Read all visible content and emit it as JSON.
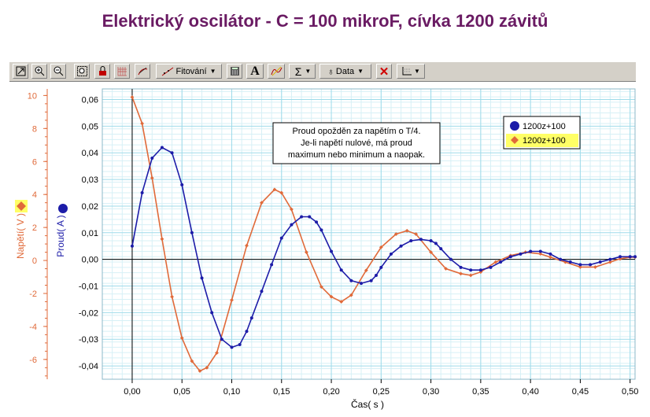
{
  "title": "Elektrický oscilátor - C = 100 mikroF, cívka 1200 závitů",
  "toolbar": {
    "icons": [
      "autoscale-icon",
      "zoom-in-icon",
      "zoom-out-icon",
      "zoom-box-icon",
      "lock-icon",
      "grid-icon",
      "slope-icon"
    ],
    "fit_label": "Fitování",
    "calc_icon": "calculator-icon",
    "text_icon": "A",
    "sigma_label": "Σ",
    "data_label": "Data",
    "delete_icon": "delete-icon",
    "axes_icon": "axes-options-icon"
  },
  "colors": {
    "current": "#1c1ca8",
    "voltage": "#e06a3a",
    "grid": "#9fdbea",
    "gridMinor": "#d7f0f6"
  },
  "chart_data": {
    "type": "line",
    "xlabel": "Čas( s )",
    "ylabel_left": "Proud( A )",
    "ylabel_right": "Napětí( V )",
    "xlim": [
      -0.03,
      0.505
    ],
    "ylim_current": [
      -0.045,
      0.064
    ],
    "ylim_voltage": [
      -7.2,
      10.4
    ],
    "x_ticks": [
      "0,00",
      "0,05",
      "0,10",
      "0,15",
      "0,20",
      "0,25",
      "0,30",
      "0,35",
      "0,40",
      "0,45",
      "0,50"
    ],
    "current_ticks": [
      "0,06",
      "0,05",
      "0,04",
      "0,03",
      "0,02",
      "0,01",
      "0,00",
      "-0,01",
      "-0,02",
      "-0,03",
      "-0,04"
    ],
    "voltage_ticks": [
      "10",
      "8",
      "6",
      "4",
      "2",
      "0",
      "-2",
      "-4",
      "-6"
    ],
    "annotation": [
      "Proud opožděn za napětím o T/4.",
      "Je-li napětí nulové, má proud",
      "maximum nebo minimum a naopak."
    ],
    "series": [
      {
        "name": "1200z+100",
        "axis": "current",
        "marker": "circle",
        "x": [
          0.0,
          0.01,
          0.02,
          0.03,
          0.04,
          0.05,
          0.06,
          0.07,
          0.08,
          0.09,
          0.1,
          0.108,
          0.115,
          0.12,
          0.13,
          0.14,
          0.15,
          0.16,
          0.17,
          0.178,
          0.185,
          0.19,
          0.2,
          0.21,
          0.22,
          0.23,
          0.24,
          0.245,
          0.25,
          0.26,
          0.27,
          0.28,
          0.29,
          0.3,
          0.305,
          0.31,
          0.32,
          0.33,
          0.34,
          0.35,
          0.36,
          0.37,
          0.38,
          0.39,
          0.4,
          0.41,
          0.42,
          0.43,
          0.44,
          0.45,
          0.46,
          0.47,
          0.48,
          0.49,
          0.5,
          0.505
        ],
        "y": [
          0.005,
          0.025,
          0.038,
          0.042,
          0.04,
          0.028,
          0.01,
          -0.007,
          -0.02,
          -0.03,
          -0.033,
          -0.032,
          -0.027,
          -0.022,
          -0.012,
          -0.002,
          0.008,
          0.013,
          0.016,
          0.016,
          0.014,
          0.011,
          0.003,
          -0.004,
          -0.008,
          -0.009,
          -0.008,
          -0.006,
          -0.003,
          0.002,
          0.005,
          0.007,
          0.0075,
          0.007,
          0.006,
          0.004,
          0.0,
          -0.003,
          -0.004,
          -0.004,
          -0.003,
          -0.001,
          0.001,
          0.002,
          0.003,
          0.003,
          0.002,
          0.0,
          -0.001,
          -0.002,
          -0.002,
          -0.001,
          0.0,
          0.001,
          0.001,
          0.001
        ]
      },
      {
        "name": "1200z+100",
        "axis": "voltage",
        "marker": "diamond",
        "x": [
          0.0,
          0.01,
          0.02,
          0.03,
          0.04,
          0.05,
          0.06,
          0.068,
          0.075,
          0.085,
          0.1,
          0.115,
          0.13,
          0.143,
          0.15,
          0.16,
          0.175,
          0.19,
          0.2,
          0.21,
          0.22,
          0.235,
          0.25,
          0.265,
          0.276,
          0.285,
          0.3,
          0.315,
          0.33,
          0.34,
          0.35,
          0.365,
          0.38,
          0.395,
          0.41,
          0.42,
          0.435,
          0.45,
          0.465,
          0.48,
          0.49,
          0.5,
          0.505
        ],
        "y": [
          9.9,
          8.3,
          5.0,
          1.3,
          -2.2,
          -4.7,
          -6.1,
          -6.7,
          -6.5,
          -5.6,
          -2.4,
          0.9,
          3.5,
          4.3,
          4.1,
          3.1,
          0.5,
          -1.6,
          -2.2,
          -2.5,
          -2.1,
          -0.6,
          0.8,
          1.6,
          1.8,
          1.6,
          0.5,
          -0.5,
          -0.8,
          -0.9,
          -0.7,
          -0.1,
          0.3,
          0.5,
          0.4,
          0.2,
          -0.1,
          -0.4,
          -0.4,
          -0.1,
          0.1,
          0.2,
          0.2
        ]
      }
    ]
  }
}
